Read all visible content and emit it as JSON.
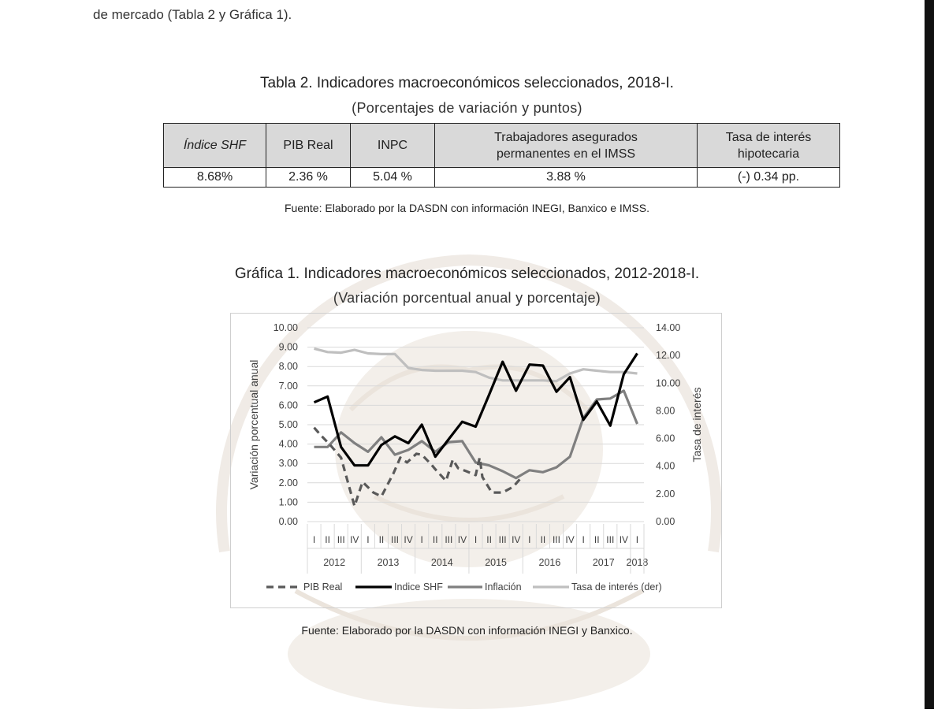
{
  "intro_text": "de mercado (Tabla 2 y Gráfica 1).",
  "table": {
    "title": "Tabla 2. Indicadores macroeconómicos seleccionados, 2018-I.",
    "subtitle": "(Porcentajes de variación y puntos)",
    "headers": [
      "Índice SHF",
      "PIB Real",
      "INPC",
      "Trabajadores asegurados permanentes en el IMSS",
      "Tasa de interés hipotecaria"
    ],
    "values": [
      "8.68%",
      "2.36 %",
      "5.04 %",
      "3.88 %",
      "(-) 0.34 pp."
    ],
    "source": "Fuente: Elaborado por la DASDN con información INEGI, Banxico e IMSS."
  },
  "chart": {
    "title": "Gráfica 1. Indicadores macroeconómicos seleccionados, 2012-2018-I.",
    "subtitle": "(Variación porcentual anual y porcentaje)",
    "source": "Fuente: Elaborado por la DASDN con información INEGI y Banxico."
  },
  "chart_data": {
    "type": "line",
    "ylabel": "Variación porcentual anual",
    "y2label": "Tasa de interés",
    "ylim": [
      0,
      10
    ],
    "y2lim": [
      0,
      14
    ],
    "yticks": [
      "0.00",
      "1.00",
      "2.00",
      "3.00",
      "4.00",
      "5.00",
      "6.00",
      "7.00",
      "8.00",
      "9.00",
      "10.00"
    ],
    "y2ticks": [
      "0.00",
      "2.00",
      "4.00",
      "6.00",
      "8.00",
      "10.00",
      "12.00",
      "14.00"
    ],
    "quarters": [
      "I",
      "II",
      "III",
      "IV",
      "I",
      "II",
      "III",
      "IV",
      "I",
      "II",
      "III",
      "IV",
      "I",
      "II",
      "III",
      "IV",
      "I",
      "II",
      "III",
      "IV",
      "I",
      "II",
      "III",
      "IV",
      "I"
    ],
    "years": [
      "2012",
      "2013",
      "2014",
      "2015",
      "2016",
      "2017",
      "2018"
    ],
    "grid": "horizontal",
    "legend_position": "bottom",
    "series": [
      {
        "name": "PIB Real",
        "axis": "left",
        "style": "dashed",
        "color": "#595959",
        "values": [
          4.85,
          4.45,
          3.95,
          3.3,
          0.8,
          2.05,
          1.5,
          1.3,
          2.5,
          3.3,
          3.05,
          3.5,
          3.45,
          2.95,
          2.7,
          2.1,
          3.2,
          2.75,
          2.6,
          2.4,
          3.3,
          2.3,
          1.5,
          1.5,
          1.8,
          2.36
        ],
        "x": [
          0,
          0.5,
          1.2,
          2,
          3,
          3.6,
          4.4,
          5,
          5.9,
          6.4,
          6.9,
          7.6,
          8,
          8.7,
          9,
          9.8,
          10.3,
          10.7,
          11.3,
          12,
          12.3,
          12.5,
          13.2,
          14,
          14.8,
          15.5
        ]
      },
      {
        "name": "Indice SHF",
        "axis": "left",
        "style": "solid",
        "color": "#000000",
        "values": [
          6.15,
          6.45,
          3.85,
          2.9,
          2.9,
          3.95,
          4.4,
          4.05,
          5.0,
          3.35,
          4.25,
          5.15,
          4.9,
          6.55,
          8.25,
          6.75,
          8.1,
          8.05,
          6.7,
          7.45,
          5.25,
          6.2,
          4.95,
          7.6,
          8.68
        ],
        "x": [
          0,
          1,
          2,
          3,
          4,
          5,
          6,
          7,
          8,
          9,
          10,
          11,
          12,
          13,
          14,
          15,
          16,
          17,
          18,
          19,
          20,
          21,
          22,
          23,
          24
        ]
      },
      {
        "name": "Inflación",
        "axis": "left",
        "style": "solid",
        "color": "#7f7f7f",
        "values": [
          3.85,
          3.85,
          4.6,
          4.05,
          3.6,
          4.35,
          3.45,
          3.7,
          4.15,
          3.6,
          4.1,
          4.15,
          3.05,
          2.9,
          2.6,
          2.25,
          2.65,
          2.55,
          2.8,
          3.35,
          5.35,
          6.3,
          6.35,
          6.75,
          5.04
        ],
        "x": [
          0,
          1,
          2,
          3,
          4,
          5,
          6,
          7,
          8,
          9,
          10,
          11,
          12,
          13,
          14,
          15,
          16,
          17,
          18,
          19,
          20,
          21,
          22,
          23,
          24
        ]
      },
      {
        "name": "Tasa de interés (der)",
        "axis": "right",
        "style": "solid",
        "color": "#bfbfbf",
        "values": [
          12.5,
          12.25,
          12.2,
          12.4,
          12.15,
          12.1,
          12.1,
          11.1,
          10.95,
          10.9,
          10.9,
          10.9,
          10.8,
          10.4,
          10.2,
          10.2,
          10.2,
          10.2,
          10.15,
          10.7,
          11.0,
          10.9,
          10.8,
          10.8,
          10.7
        ],
        "x": [
          0,
          1,
          2,
          3,
          4,
          5,
          6,
          7,
          8,
          9,
          10,
          11,
          12,
          13,
          14,
          15,
          16,
          17,
          18,
          19,
          20,
          21,
          22,
          23,
          24
        ]
      }
    ]
  }
}
